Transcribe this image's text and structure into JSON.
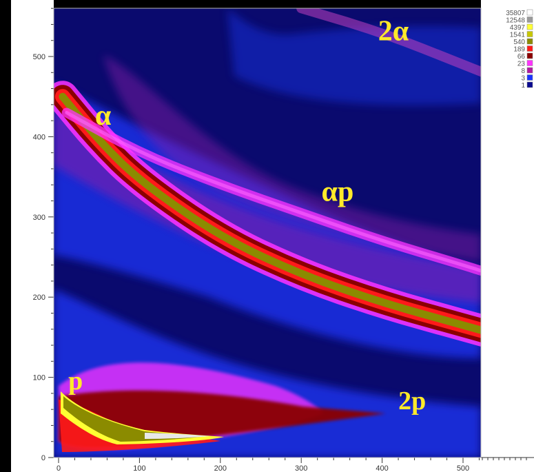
{
  "chart_data": {
    "type": "heatmap",
    "title": "",
    "xlabel": "",
    "ylabel": "",
    "xlim": [
      0,
      525
    ],
    "ylim": [
      0,
      560
    ],
    "x_ticks": [
      0,
      100,
      200,
      300,
      400,
      500
    ],
    "y_ticks": [
      0,
      100,
      200,
      300,
      400,
      500
    ],
    "color_scale": {
      "placement": "top-right",
      "levels": [
        {
          "label": "35807",
          "color": "#ffffff"
        },
        {
          "label": "12548",
          "color": "#9a9a9a"
        },
        {
          "label": "4397",
          "color": "#ffff33"
        },
        {
          "label": "1541",
          "color": "#c8c800"
        },
        {
          "label": "540",
          "color": "#8b8b00"
        },
        {
          "label": "189",
          "color": "#ff1a1a"
        },
        {
          "label": "66",
          "color": "#8b0000"
        },
        {
          "label": "23",
          "color": "#ff33ff"
        },
        {
          "label": "8",
          "color": "#b01aa0"
        },
        {
          "label": "3",
          "color": "#1a33ff"
        },
        {
          "label": "1",
          "color": "#0a0a90"
        }
      ]
    },
    "annotations": [
      {
        "text": "2α",
        "x": 395,
        "y": 520
      },
      {
        "text": "α",
        "x": 45,
        "y": 415
      },
      {
        "text": "αp",
        "x": 325,
        "y": 320
      },
      {
        "text": "p",
        "x": 12,
        "y": 85
      },
      {
        "text": "2p",
        "x": 420,
        "y": 60
      }
    ],
    "bands": [
      {
        "name": "α",
        "points": [
          [
            5,
            450
          ],
          [
            50,
            395
          ],
          [
            100,
            345
          ],
          [
            200,
            275
          ],
          [
            300,
            228
          ],
          [
            400,
            193
          ],
          [
            500,
            165
          ],
          [
            525,
            158
          ]
        ]
      },
      {
        "name": "αp",
        "points": [
          [
            10,
            430
          ],
          [
            100,
            380
          ],
          [
            200,
            340
          ],
          [
            300,
            305
          ],
          [
            400,
            270
          ],
          [
            500,
            240
          ],
          [
            525,
            232
          ]
        ]
      },
      {
        "name": "2α",
        "points": [
          [
            300,
            560
          ],
          [
            400,
            530
          ],
          [
            500,
            490
          ],
          [
            525,
            480
          ]
        ]
      }
    ]
  }
}
